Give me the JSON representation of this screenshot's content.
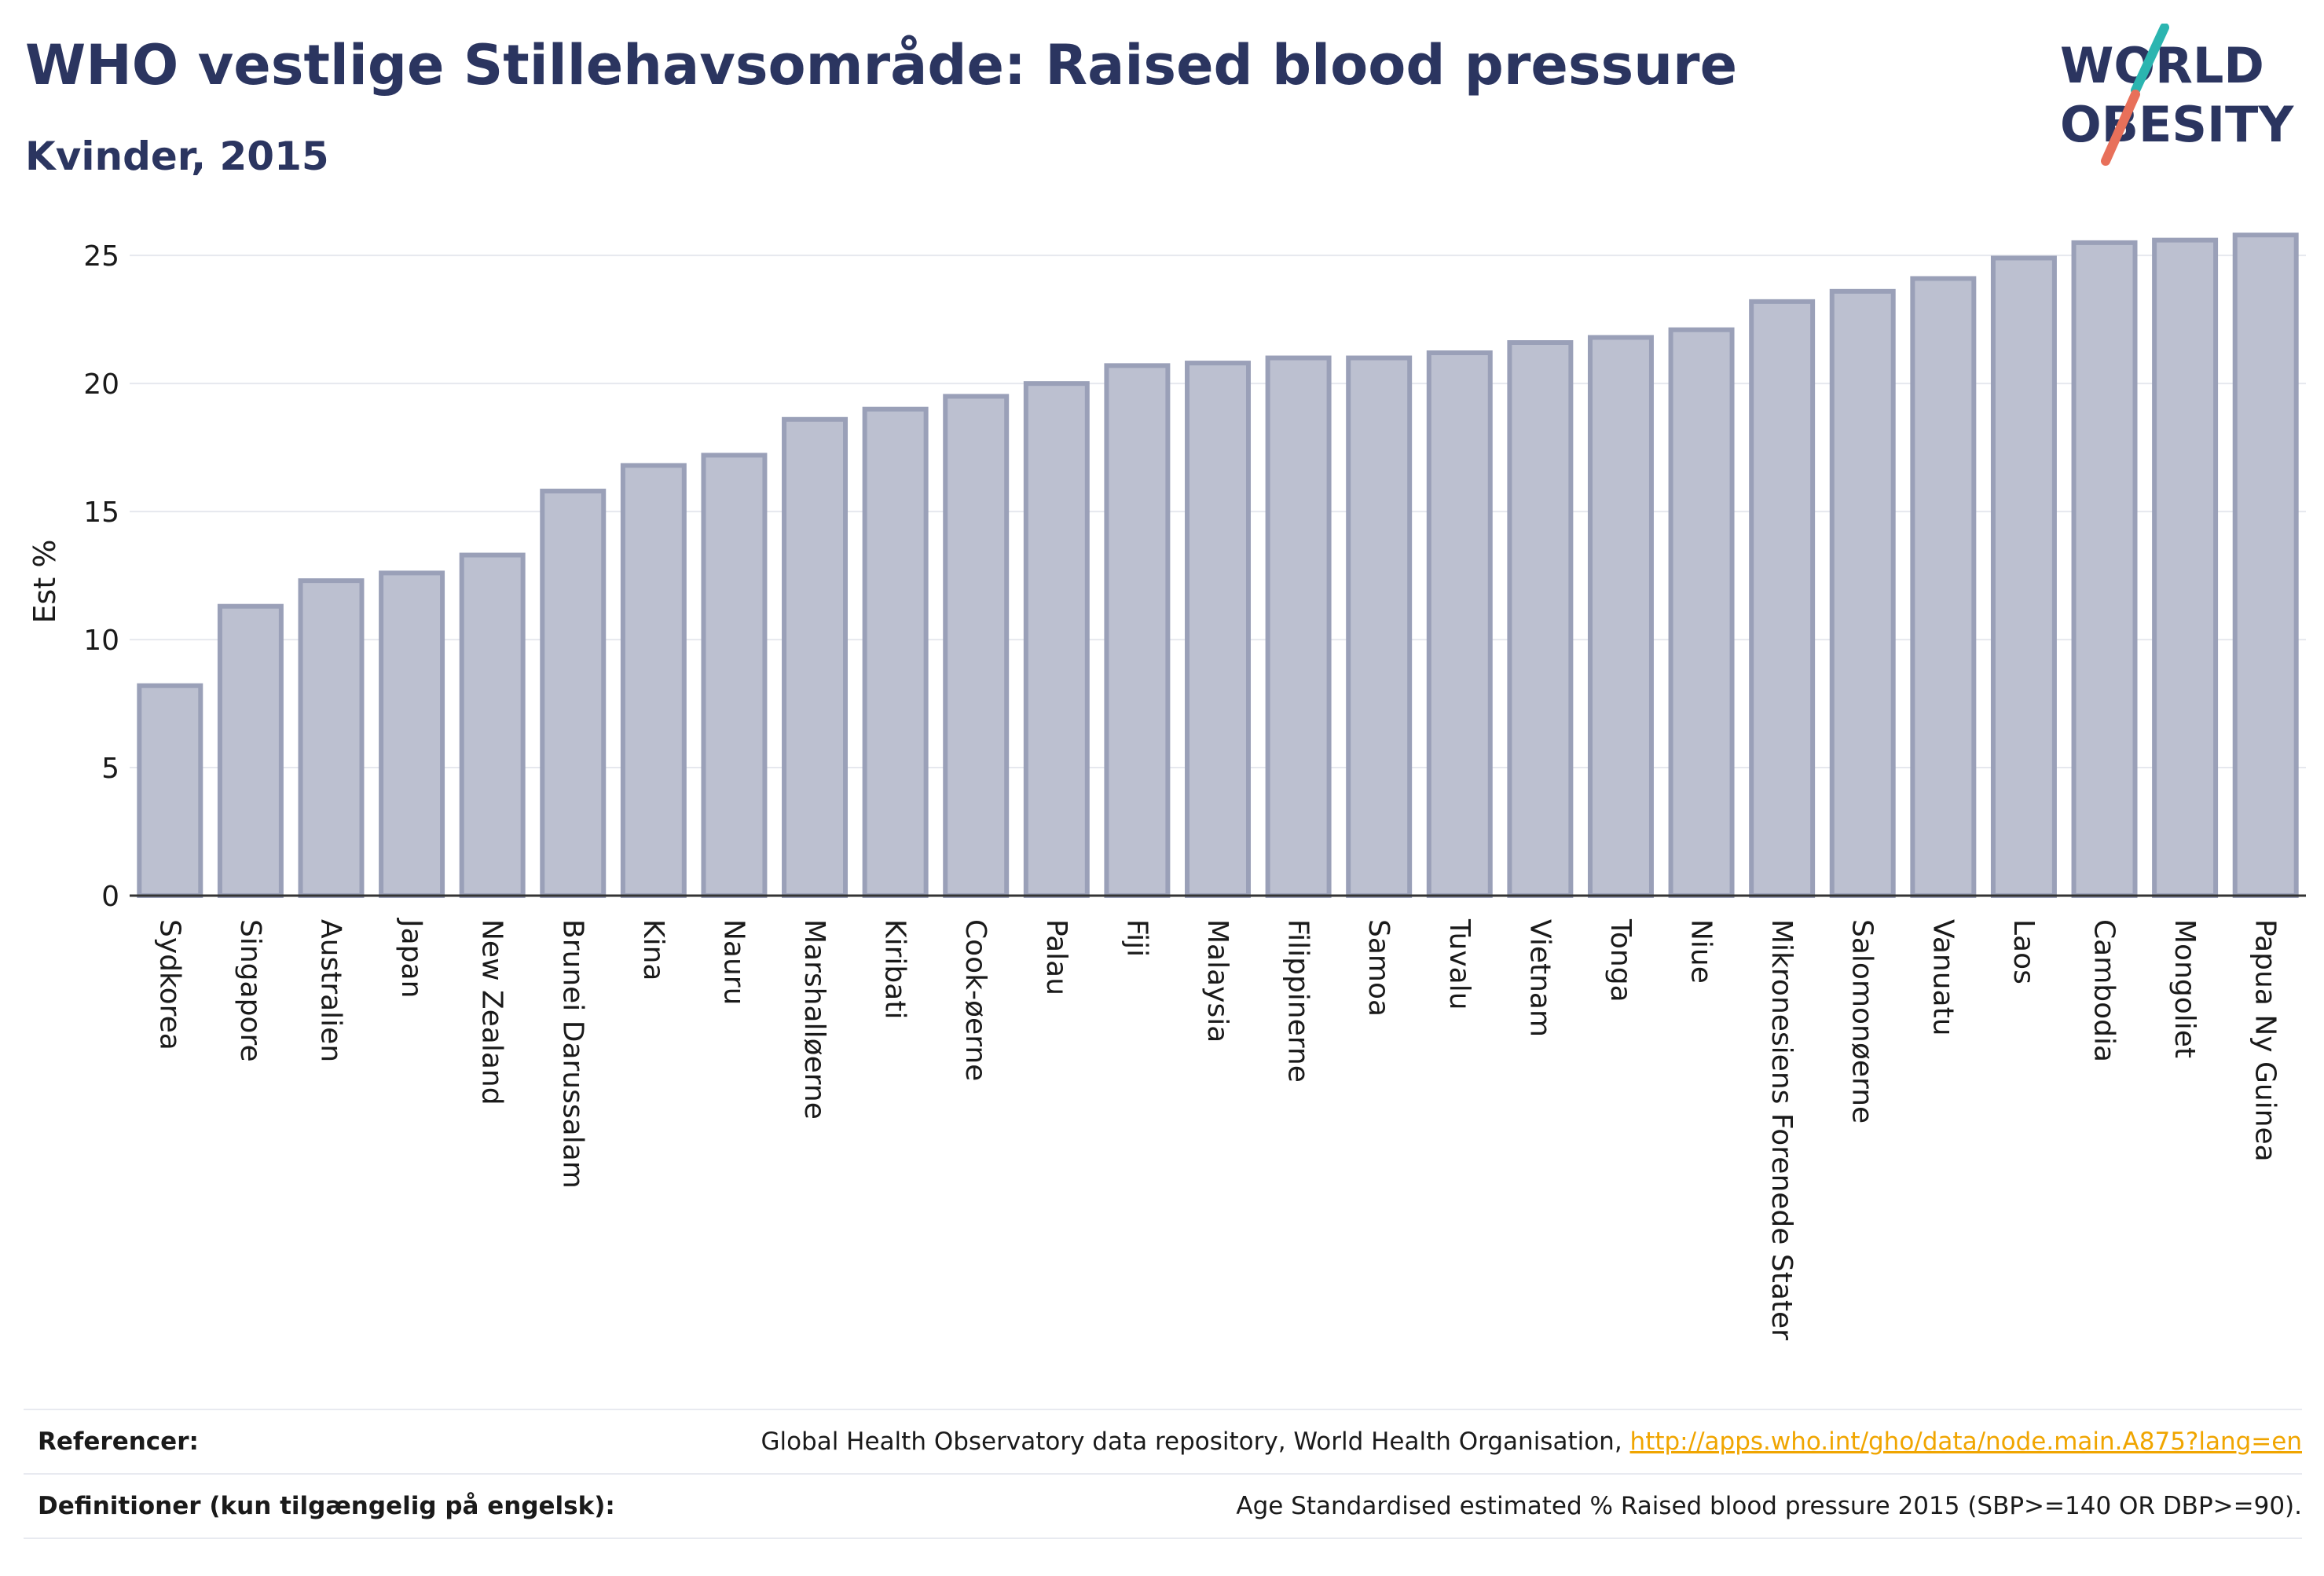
{
  "header": {
    "title": "WHO vestlige Stillehavsområde: Raised blood pressure",
    "subtitle": "Kvinder, 2015"
  },
  "logo": {
    "line1": "WORLD",
    "line2": "OBESITY",
    "accent_teal": "#2bb5b0",
    "accent_coral": "#e8705a",
    "text_color": "#2b3560"
  },
  "chart_data": {
    "type": "bar",
    "title": "WHO vestlige Stillehavsområde: Raised blood pressure",
    "subtitle": "Kvinder, 2015",
    "xlabel": "",
    "ylabel": "Est %",
    "ylim": [
      0,
      27
    ],
    "yticks": [
      0,
      5,
      10,
      15,
      20,
      25
    ],
    "grid": true,
    "bar_fill": "#bcc0d0",
    "bar_stroke": "#9aa0b8",
    "categories": [
      "Sydkorea",
      "Singapore",
      "Australien",
      "Japan",
      "New Zealand",
      "Brunei Darussalam",
      "Kina",
      "Nauru",
      "Marshalløerne",
      "Kiribati",
      "Cook-øerne",
      "Palau",
      "Fiji",
      "Malaysia",
      "Filippinerne",
      "Samoa",
      "Tuvalu",
      "Vietnam",
      "Tonga",
      "Niue",
      "Mikronesiens Forenede Stater",
      "Salomonøerne",
      "Vanuatu",
      "Laos",
      "Cambodia",
      "Mongoliet",
      "Papua Ny Guinea"
    ],
    "values": [
      8.2,
      11.3,
      12.3,
      12.6,
      13.3,
      15.8,
      16.8,
      17.2,
      18.6,
      19.0,
      19.5,
      20.0,
      20.7,
      20.8,
      21.0,
      21.0,
      21.2,
      21.6,
      21.8,
      22.1,
      23.2,
      23.6,
      24.1,
      24.9,
      25.5,
      25.6,
      25.8
    ]
  },
  "footer": {
    "references_label": "Referencer:",
    "references_text": "Global Health Observatory data repository, World Health Organisation,",
    "references_link": "http://apps.who.int/gho/data/node.main.A875?lang=en",
    "definitions_label": "Definitioner (kun tilgængelig på engelsk):",
    "definitions_text": "Age Standardised estimated % Raised blood pressure 2015 (SBP>=140 OR DBP>=90)."
  }
}
